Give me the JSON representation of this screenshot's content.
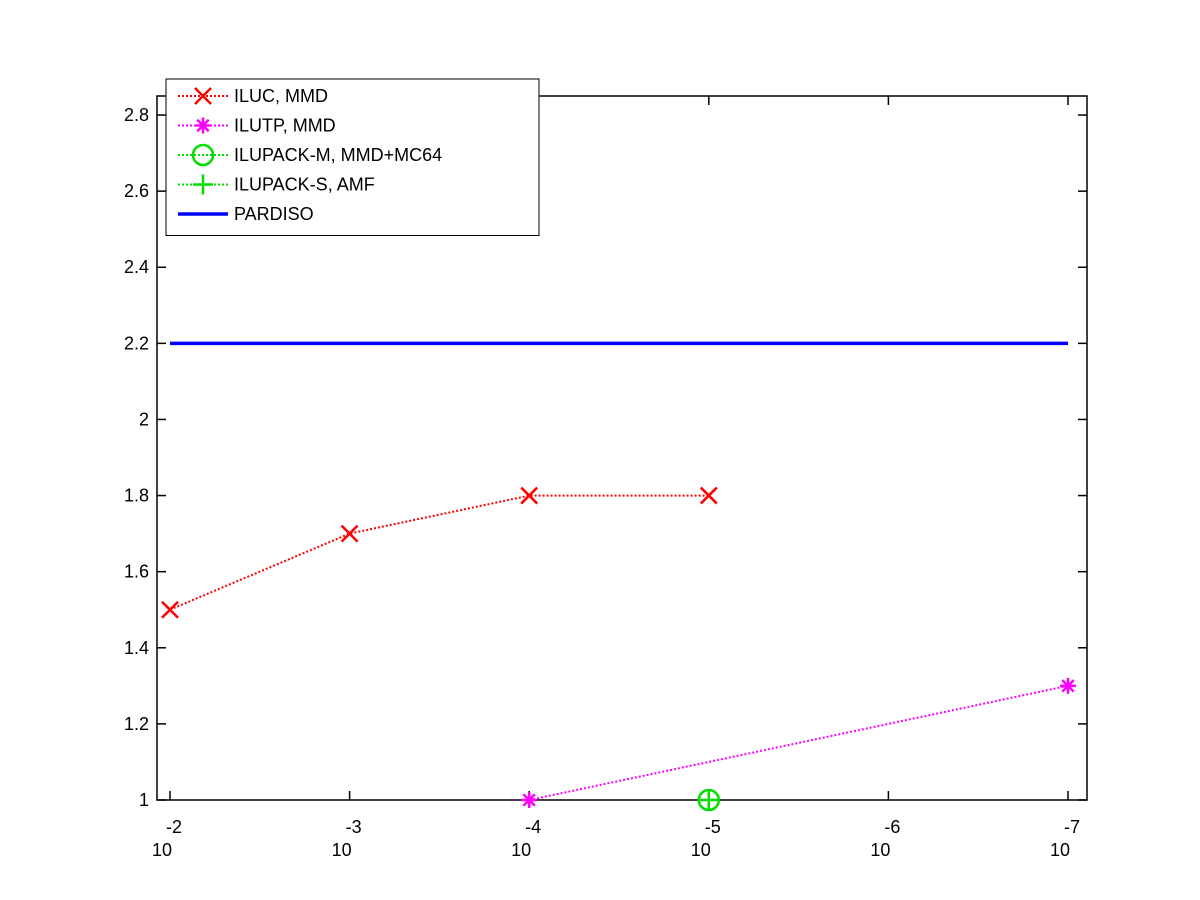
{
  "chart_data": {
    "type": "line",
    "title": "",
    "xlabel": "",
    "ylabel": "",
    "x_scale": "log",
    "x_reversed": true,
    "xlim": [
      0.01,
      1e-07
    ],
    "ylim": [
      1,
      2.85
    ],
    "x_ticks": [
      {
        "value": 0.01,
        "base": "10",
        "exp": "-2"
      },
      {
        "value": 0.001,
        "base": "10",
        "exp": "-3"
      },
      {
        "value": 0.0001,
        "base": "10",
        "exp": "-4"
      },
      {
        "value": 1e-05,
        "base": "10",
        "exp": "-5"
      },
      {
        "value": 1e-06,
        "base": "10",
        "exp": "-6"
      },
      {
        "value": 1e-07,
        "base": "10",
        "exp": "-7"
      }
    ],
    "y_ticks": [
      {
        "value": 1,
        "label": "1"
      },
      {
        "value": 1.2,
        "label": "1.2"
      },
      {
        "value": 1.4,
        "label": "1.4"
      },
      {
        "value": 1.6,
        "label": "1.6"
      },
      {
        "value": 1.8,
        "label": "1.8"
      },
      {
        "value": 2,
        "label": "2"
      },
      {
        "value": 2.2,
        "label": "2.2"
      },
      {
        "value": 2.4,
        "label": "2.4"
      },
      {
        "value": 2.6,
        "label": "2.6"
      },
      {
        "value": 2.8,
        "label": "2.8"
      }
    ],
    "grid": false,
    "legend_position": "top-left",
    "series": [
      {
        "name": "ILUC, MMD",
        "color": "#ff0000",
        "marker": "x",
        "line": "dotted",
        "points": [
          {
            "x": 0.01,
            "y": 1.5
          },
          {
            "x": 0.001,
            "y": 1.7
          },
          {
            "x": 0.0001,
            "y": 1.8
          },
          {
            "x": 1e-05,
            "y": 1.8
          }
        ]
      },
      {
        "name": "ILUTP, MMD",
        "color": "#ff00ff",
        "marker": "asterisk",
        "line": "dotted",
        "points": [
          {
            "x": 0.0001,
            "y": 1.0
          },
          {
            "x": 1e-07,
            "y": 1.3
          }
        ]
      },
      {
        "name": "ILUPACK-M, MMD+MC64",
        "color": "#00dd00",
        "marker": "circle",
        "line": "dotted",
        "points": [
          {
            "x": 1e-05,
            "y": 1.0
          }
        ]
      },
      {
        "name": "ILUPACK-S, AMF",
        "color": "#00dd00",
        "marker": "plus",
        "line": "dotted",
        "points": [
          {
            "x": 1e-05,
            "y": 1.0
          }
        ]
      },
      {
        "name": "PARDISO",
        "color": "#0000ff",
        "marker": "none",
        "line": "solid",
        "points": [
          {
            "x": 0.01,
            "y": 2.2
          },
          {
            "x": 1e-07,
            "y": 2.2
          }
        ]
      }
    ]
  }
}
